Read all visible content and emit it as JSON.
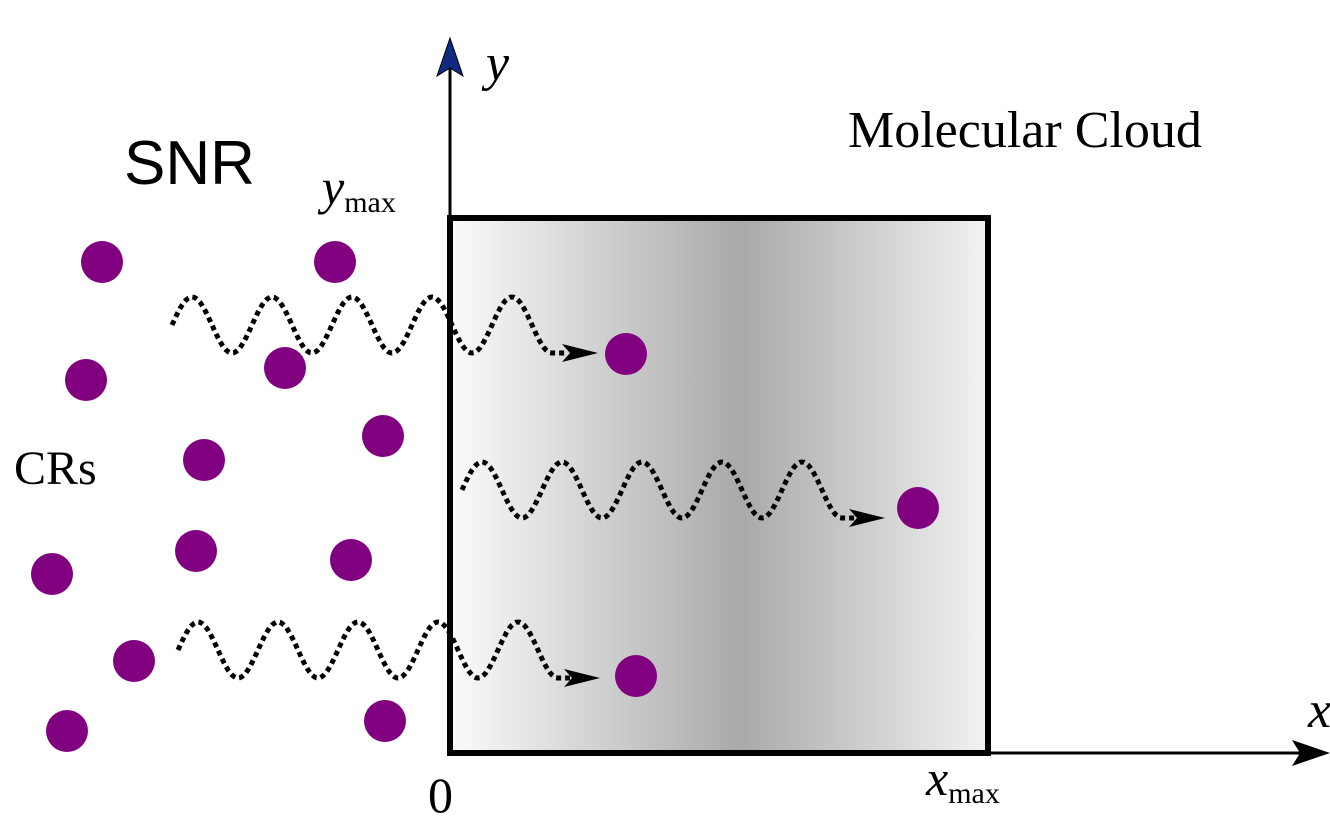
{
  "labels": {
    "source": "SNR",
    "particles": "CRs",
    "cloud": "Molecular Cloud"
  },
  "axes": {
    "x": {
      "label": "x",
      "origin": "0",
      "max": {
        "symbol": "x",
        "subscript": "max"
      }
    },
    "y": {
      "label": "y",
      "max": {
        "symbol": "y",
        "subscript": "max"
      }
    }
  }
}
